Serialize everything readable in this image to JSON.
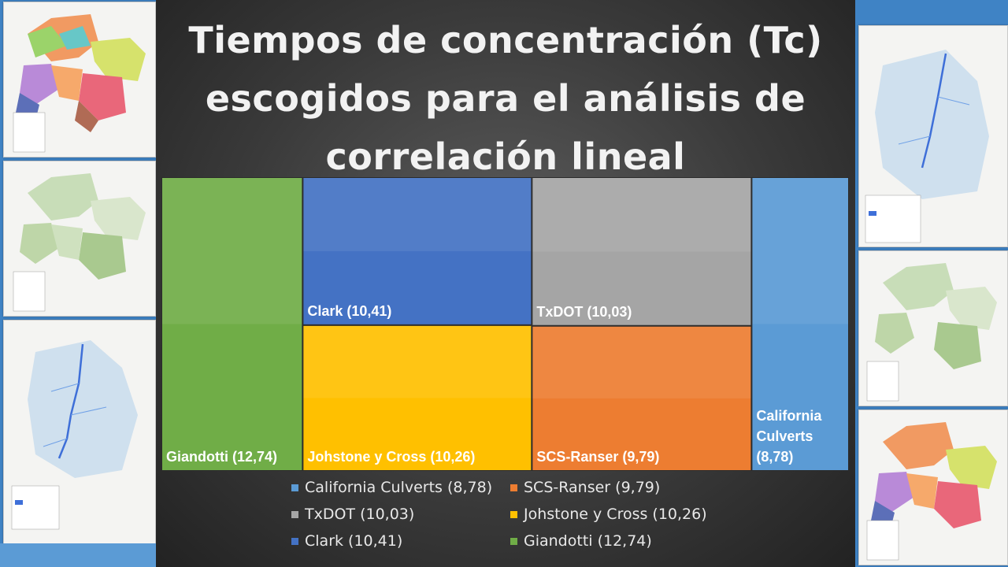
{
  "title": [
    "Tiempos de concentración (Tc)",
    "escogidos para el análisis de",
    "correlación lineal"
  ],
  "chart_data": {
    "type": "treemap",
    "items": [
      {
        "name": "Giandotti",
        "value": 12.74,
        "label": "Giandotti  (12,74)",
        "color": "#70ad47"
      },
      {
        "name": "Clark",
        "value": 10.41,
        "label": "Clark  (10,41)",
        "color": "#4472c4"
      },
      {
        "name": "Johstone y Cross",
        "value": 10.26,
        "label": "Johstone  y Cross  (10,26)",
        "color": "#ffc000"
      },
      {
        "name": "TxDOT",
        "value": 10.03,
        "label": "TxDOT (10,03)",
        "color": "#a5a5a5"
      },
      {
        "name": "SCS-Ranser",
        "value": 9.79,
        "label": "SCS-Ranser  (9,79)",
        "color": "#ed7d31"
      },
      {
        "name": "California Culverts",
        "value": 8.78,
        "label": [
          "California",
          "Culverts",
          "(8,78)"
        ],
        "color": "#5b9bd5"
      }
    ],
    "legend": [
      {
        "label": "California Culverts  (8,78)",
        "color": "#5b9bd5"
      },
      {
        "label": "SCS-Ranser (9,79)",
        "color": "#ed7d31"
      },
      {
        "label": "TxDOT (10,03)",
        "color": "#a5a5a5"
      },
      {
        "label": "Johstone y Cross  (10,26)",
        "color": "#ffc000"
      },
      {
        "label": "Clark  (10,41)",
        "color": "#4472c4"
      },
      {
        "label": "Giandotti (12,74)",
        "color": "#70ad47"
      }
    ],
    "legend_placement": "bottom"
  }
}
